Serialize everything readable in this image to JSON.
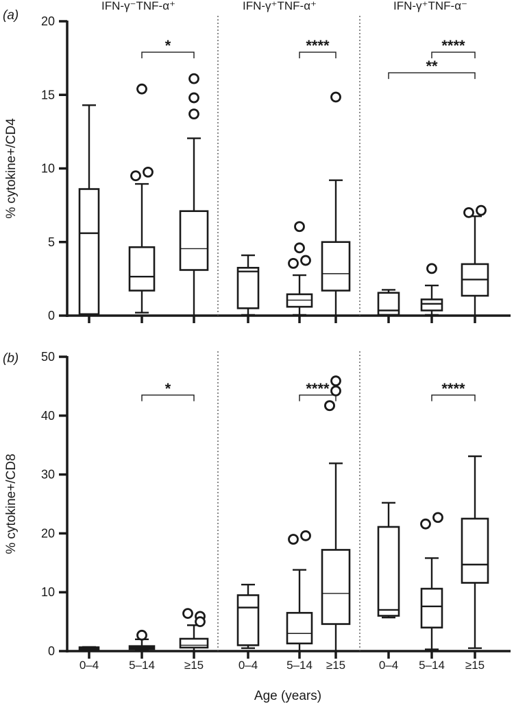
{
  "colors": {
    "ink": "#1a1a1a",
    "background": "#ffffff"
  },
  "xlabel": "Age (years)",
  "group_titles": [
    "IFN-γ⁻TNF-α⁺",
    "IFN-γ⁺TNF-α⁺",
    "IFN-γ⁺TNF-α⁻"
  ],
  "chart_data": [
    {
      "type": "box",
      "panel_label": "(a)",
      "ylabel": "% cytokine+/CD4",
      "ylim": [
        0,
        20
      ],
      "yticks": [
        0,
        5,
        10,
        15,
        20
      ],
      "categories": [
        "0–4",
        "5–14",
        "≥15",
        "0–4",
        "5–14",
        "≥15",
        "0–4",
        "5–14",
        "≥15"
      ],
      "boxes": [
        {
          "whisker_low": 0.05,
          "q1": 0.1,
          "median": 5.6,
          "q3": 8.6,
          "whisker_high": 14.3,
          "outliers": []
        },
        {
          "whisker_low": 0.2,
          "q1": 1.7,
          "median": 2.65,
          "q3": 4.65,
          "whisker_high": 8.95,
          "outliers": [
            15.4,
            9.5,
            9.75
          ]
        },
        {
          "whisker_low": 0.0,
          "q1": 3.1,
          "median": 4.55,
          "q3": 7.1,
          "whisker_high": 12.05,
          "outliers": [
            16.1,
            14.8,
            13.7
          ]
        },
        {
          "whisker_low": 0.05,
          "q1": 0.5,
          "median": 3.0,
          "q3": 3.25,
          "whisker_high": 4.1,
          "outliers": []
        },
        {
          "whisker_low": 0.05,
          "q1": 0.6,
          "median": 1.05,
          "q3": 1.45,
          "whisker_high": 2.75,
          "outliers": [
            6.05,
            4.6,
            3.55,
            3.75
          ]
        },
        {
          "whisker_low": 0.0,
          "q1": 1.7,
          "median": 2.85,
          "q3": 5.0,
          "whisker_high": 9.2,
          "outliers": [
            14.85
          ]
        },
        {
          "whisker_low": 0.0,
          "q1": 0.05,
          "median": 0.35,
          "q3": 1.55,
          "whisker_high": 1.75,
          "outliers": []
        },
        {
          "whisker_low": 0.05,
          "q1": 0.35,
          "median": 0.8,
          "q3": 1.1,
          "whisker_high": 2.05,
          "outliers": [
            3.2
          ]
        },
        {
          "whisker_low": 0.0,
          "q1": 1.35,
          "median": 2.45,
          "q3": 3.5,
          "whisker_high": 6.75,
          "outliers": [
            7.0,
            7.15
          ]
        }
      ],
      "significance": [
        {
          "from": 1,
          "to": 2,
          "y": 17.9,
          "label": "*"
        },
        {
          "from": 4,
          "to": 5,
          "y": 17.9,
          "label": "****"
        },
        {
          "from": 7,
          "to": 8,
          "y": 17.9,
          "label": "****"
        },
        {
          "from": 6,
          "to": 8,
          "y": 16.5,
          "label": "**"
        }
      ]
    },
    {
      "type": "box",
      "panel_label": "(b)",
      "ylabel": "% cytokine+/CD8",
      "ylim": [
        0,
        50
      ],
      "yticks": [
        0,
        10,
        20,
        30,
        40,
        50
      ],
      "categories": [
        "0–4",
        "5–14",
        "≥15",
        "0–4",
        "5–14",
        "≥15",
        "0–4",
        "5–14",
        "≥15"
      ],
      "boxes": [
        {
          "whisker_low": 0.1,
          "q1": 0.3,
          "median": 0.5,
          "q3": 0.65,
          "whisker_high": 0.7,
          "outliers": []
        },
        {
          "whisker_low": 0.1,
          "q1": 0.35,
          "median": 0.6,
          "q3": 0.85,
          "whisker_high": 2.0,
          "outliers": [
            2.7
          ]
        },
        {
          "whisker_low": 0.0,
          "q1": 0.6,
          "median": 1.0,
          "q3": 2.1,
          "whisker_high": 4.4,
          "outliers": [
            6.4,
            5.9,
            5.0
          ]
        },
        {
          "whisker_low": 0.5,
          "q1": 1.0,
          "median": 7.4,
          "q3": 9.5,
          "whisker_high": 11.3,
          "outliers": []
        },
        {
          "whisker_low": 0.0,
          "q1": 1.3,
          "median": 3.0,
          "q3": 6.5,
          "whisker_high": 13.8,
          "outliers": [
            19.0,
            19.6
          ]
        },
        {
          "whisker_low": 0.0,
          "q1": 4.6,
          "median": 9.8,
          "q3": 17.2,
          "whisker_high": 31.9,
          "outliers": [
            45.9,
            44.2,
            41.7,
            41.7
          ]
        },
        {
          "whisker_low": 5.7,
          "q1": 6.0,
          "median": 7.0,
          "q3": 21.1,
          "whisker_high": 25.2,
          "outliers": []
        },
        {
          "whisker_low": 0.3,
          "q1": 4.0,
          "median": 7.6,
          "q3": 10.6,
          "whisker_high": 15.8,
          "outliers": [
            21.6,
            22.7
          ]
        },
        {
          "whisker_low": 0.5,
          "q1": 11.6,
          "median": 14.7,
          "q3": 22.5,
          "whisker_high": 33.1,
          "outliers": []
        }
      ],
      "significance": [
        {
          "from": 1,
          "to": 2,
          "y": 43.5,
          "label": "*"
        },
        {
          "from": 4,
          "to": 5,
          "y": 43.5,
          "label": "****"
        },
        {
          "from": 7,
          "to": 8,
          "y": 43.5,
          "label": "****"
        }
      ]
    }
  ]
}
